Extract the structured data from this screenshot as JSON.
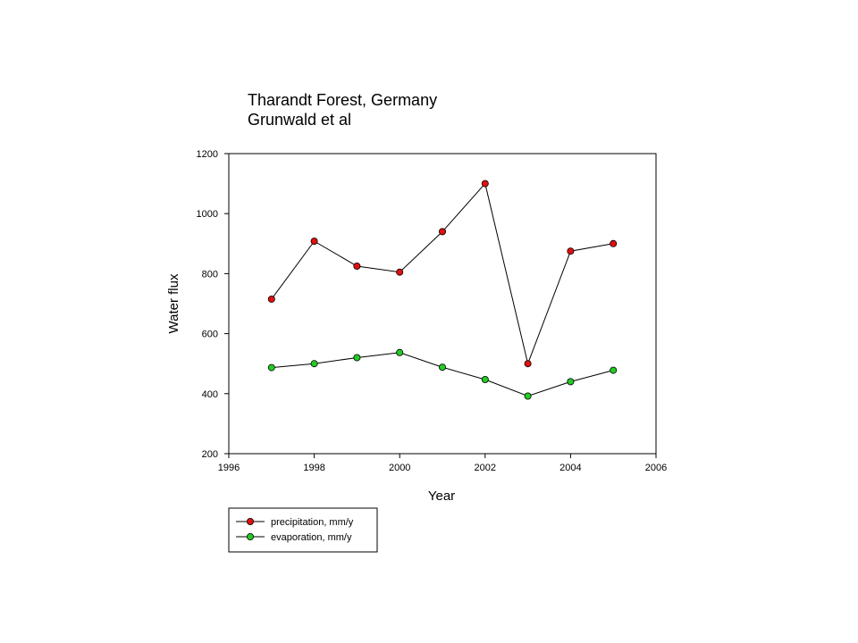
{
  "chart_data": {
    "type": "line",
    "title": [
      "Tharandt Forest, Germany",
      "Grunwald et al"
    ],
    "xlabel": "Year",
    "ylabel": "Water flux",
    "xlim": [
      1996,
      2006
    ],
    "ylim": [
      200,
      1200
    ],
    "xticks": [
      1996,
      1998,
      2000,
      2002,
      2004,
      2006
    ],
    "yticks": [
      200,
      400,
      600,
      800,
      1000,
      1200
    ],
    "grid": false,
    "legend_position": "bottom-left, below plot",
    "x": [
      1997,
      1998,
      1999,
      2000,
      2001,
      2002,
      2003,
      2004,
      2005
    ],
    "series": [
      {
        "name": "precipitation, mm/y",
        "color": "#e01010",
        "values": [
          715,
          908,
          825,
          805,
          940,
          1100,
          500,
          875,
          900
        ]
      },
      {
        "name": "evaporation, mm/y",
        "color": "#22cc22",
        "values": [
          487,
          500,
          520,
          537,
          488,
          447,
          392,
          440,
          478
        ]
      }
    ]
  }
}
